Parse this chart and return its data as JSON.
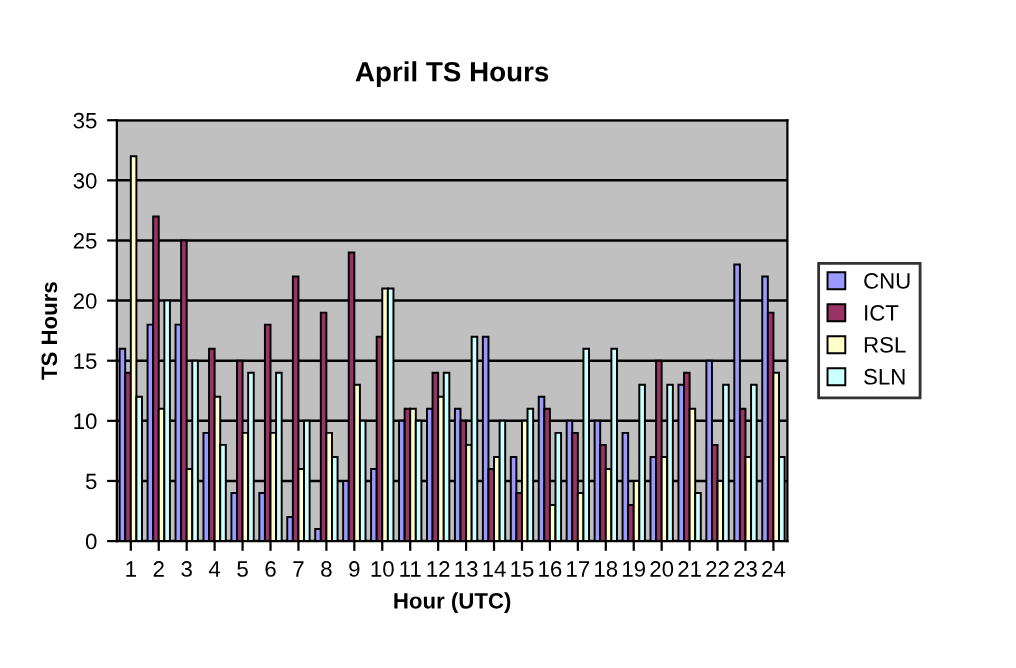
{
  "chart_data": {
    "type": "bar",
    "title": "April TS Hours",
    "xlabel": "Hour (UTC)",
    "ylabel": "TS Hours",
    "categories": [
      "1",
      "2",
      "3",
      "4",
      "5",
      "6",
      "7",
      "8",
      "9",
      "10",
      "11",
      "12",
      "13",
      "14",
      "15",
      "16",
      "17",
      "18",
      "19",
      "20",
      "21",
      "22",
      "23",
      "24"
    ],
    "series": [
      {
        "name": "CNU",
        "color": "#9999ff",
        "values": [
          16,
          18,
          18,
          9,
          4,
          4,
          2,
          1,
          5,
          6,
          10,
          11,
          11,
          17,
          7,
          12,
          10,
          10,
          9,
          7,
          13,
          15,
          23,
          22
        ]
      },
      {
        "name": "ICT",
        "color": "#993366",
        "values": [
          14,
          27,
          25,
          16,
          15,
          18,
          22,
          19,
          24,
          17,
          11,
          14,
          10,
          6,
          4,
          11,
          9,
          8,
          3,
          15,
          14,
          8,
          11,
          19
        ]
      },
      {
        "name": "RSL",
        "color": "#ffffcc",
        "values": [
          32,
          11,
          6,
          12,
          9,
          9,
          6,
          9,
          13,
          21,
          11,
          12,
          8,
          7,
          10,
          3,
          4,
          6,
          5,
          7,
          11,
          5,
          7,
          14
        ]
      },
      {
        "name": "SLN",
        "color": "#ccffff",
        "values": [
          12,
          20,
          15,
          8,
          14,
          14,
          10,
          7,
          10,
          21,
          10,
          14,
          17,
          10,
          11,
          9,
          16,
          16,
          13,
          13,
          4,
          13,
          13,
          7
        ]
      }
    ],
    "ylim": [
      0,
      35
    ],
    "yticks": [
      0,
      5,
      10,
      15,
      20,
      25,
      30,
      35
    ],
    "grid": "y",
    "legend": "right"
  }
}
